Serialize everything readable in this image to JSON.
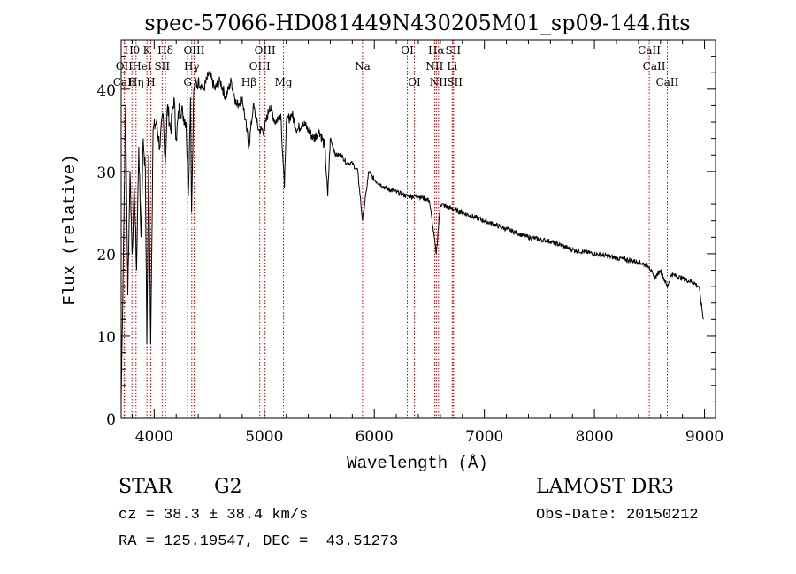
{
  "chart_data": {
    "type": "line",
    "title": "spec-57066-HD081449N430205M01_sp09-144.fits",
    "xlabel": "Wavelength (Å)",
    "ylabel": "Flux (relative)",
    "xlim": [
      3700,
      9100
    ],
    "ylim": [
      0,
      46
    ],
    "x_ticks": [
      4000,
      5000,
      6000,
      7000,
      8000,
      9000
    ],
    "y_ticks": [
      0,
      10,
      20,
      30,
      40
    ],
    "grid": false,
    "series": [
      {
        "name": "spectrum",
        "x": [
          3700,
          3720,
          3740,
          3760,
          3780,
          3800,
          3820,
          3840,
          3860,
          3880,
          3900,
          3920,
          3933,
          3950,
          3968,
          3990,
          4020,
          4050,
          4080,
          4101,
          4120,
          4150,
          4180,
          4200,
          4230,
          4260,
          4290,
          4310,
          4330,
          4340,
          4360,
          4400,
          4450,
          4500,
          4550,
          4600,
          4650,
          4700,
          4750,
          4800,
          4861,
          4900,
          4950,
          5000,
          5050,
          5100,
          5150,
          5183,
          5200,
          5250,
          5300,
          5350,
          5400,
          5450,
          5500,
          5550,
          5577,
          5600,
          5650,
          5700,
          5750,
          5800,
          5850,
          5893,
          5950,
          6000,
          6100,
          6200,
          6300,
          6400,
          6500,
          6563,
          6600,
          6700,
          6800,
          6900,
          7000,
          7200,
          7400,
          7600,
          7800,
          8000,
          8200,
          8400,
          8498,
          8542,
          8600,
          8662,
          8700,
          8800,
          8900,
          8950,
          8990
        ],
        "y": [
          2,
          20,
          38,
          15,
          30,
          20,
          28,
          18,
          33,
          22,
          34,
          30,
          9,
          32,
          9,
          35,
          36,
          33,
          37,
          31,
          38,
          35,
          39,
          34,
          38,
          37,
          36,
          27,
          39,
          25,
          40,
          41,
          40,
          42,
          40,
          41,
          39,
          41,
          38,
          39,
          33,
          38,
          35,
          35,
          38,
          36,
          37,
          28,
          36,
          37,
          35,
          36,
          35,
          34,
          35,
          33,
          27,
          34,
          32,
          32,
          31,
          31,
          30,
          24,
          30,
          29,
          28,
          27.5,
          27,
          27,
          26.5,
          20,
          26,
          25.5,
          25,
          24.5,
          24,
          23,
          22,
          21.5,
          20.5,
          20,
          19.5,
          19,
          18.5,
          17,
          18,
          16,
          17.5,
          17,
          16.5,
          16,
          12
        ]
      }
    ],
    "lines": [
      {
        "name": "Hθ",
        "wl": 3798,
        "row": 0
      },
      {
        "name": "OII",
        "wl": 3727,
        "row": 1
      },
      {
        "name": "CaII",
        "wl": 3730,
        "row": 2
      },
      {
        "name": "Hη",
        "wl": 3835,
        "row": 2
      },
      {
        "name": "HeI",
        "wl": 3889,
        "row": 1
      },
      {
        "name": "K",
        "wl": 3934,
        "row": 0
      },
      {
        "name": "SII",
        "wl": 4072,
        "row": 1
      },
      {
        "name": "H",
        "wl": 3969,
        "row": 2
      },
      {
        "name": "Hδ",
        "wl": 4102,
        "row": 0
      },
      {
        "name": "OIII",
        "wl": 4363,
        "row": 0
      },
      {
        "name": "Hγ",
        "wl": 4341,
        "row": 1
      },
      {
        "name": "G",
        "wl": 4304,
        "row": 2
      },
      {
        "name": "Hβ",
        "wl": 4861,
        "row": 2
      },
      {
        "name": "OIII",
        "wl": 4959,
        "row": 1
      },
      {
        "name": "OIII",
        "wl": 5007,
        "row": 0
      },
      {
        "name": "Mg",
        "wl": 5175,
        "row": 2
      },
      {
        "name": "Na",
        "wl": 5893,
        "row": 1
      },
      {
        "name": "OI",
        "wl": 6300,
        "row": 0
      },
      {
        "name": "OI",
        "wl": 6364,
        "row": 2
      },
      {
        "name": "Hα",
        "wl": 6563,
        "row": 0
      },
      {
        "name": "NII",
        "wl": 6548,
        "row": 1
      },
      {
        "name": "NII",
        "wl": 6583,
        "row": 2
      },
      {
        "name": "SII",
        "wl": 6716,
        "row": 0
      },
      {
        "name": "Li",
        "wl": 6708,
        "row": 1
      },
      {
        "name": "SII",
        "wl": 6731,
        "row": 2
      },
      {
        "name": "CaII",
        "wl": 8498,
        "row": 0
      },
      {
        "name": "CaII",
        "wl": 8542,
        "row": 1
      },
      {
        "name": "CaII",
        "wl": 8662,
        "row": 2
      }
    ]
  },
  "info": {
    "object_type": "STAR",
    "subclass": "G2",
    "survey": "LAMOST DR3",
    "cz": "cz = 38.3 ± 38.4 km/s",
    "obs_date": "Obs-Date: 20150212",
    "coords": "RA = 125.19547, DEC =  43.51273"
  }
}
